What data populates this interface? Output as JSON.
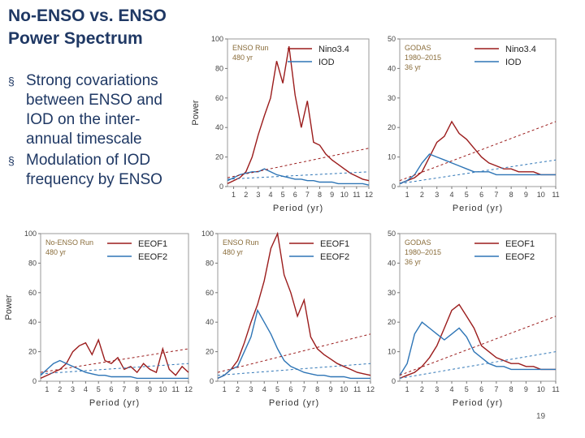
{
  "slide": {
    "title_lines": [
      "No-ENSO vs. ENSO",
      "Power Spectrum"
    ],
    "bullets": [
      {
        "lines": [
          "Strong covariations",
          "between ENSO and",
          "IOD on the inter-",
          "annual timescale"
        ]
      },
      {
        "lines": [
          "Modulation of IOD",
          "frequency by ENSO"
        ]
      }
    ],
    "bullet_glyph": "§",
    "page_number": "19"
  },
  "colors": {
    "title": "#1f3864",
    "red_series": "#9b1c1c",
    "blue_series": "#2e75b6"
  },
  "chart_data": [
    {
      "id": "enso-run-nino-iod",
      "type": "line",
      "annotation": [
        "ENSO Run",
        "480 yr"
      ],
      "xlabel": "Period (yr)",
      "ylabel": "Power",
      "xlim": [
        0.5,
        12
      ],
      "ylim": [
        0,
        100
      ],
      "x_ticks": [
        "1",
        "2",
        "3",
        "4",
        "5",
        "6",
        "7",
        "8",
        "9",
        "10",
        "11",
        "12"
      ],
      "y_ticks": [
        "0",
        "20",
        "40",
        "60",
        "80",
        "100"
      ],
      "legend_position": "top-right",
      "series": [
        {
          "name": "Nino3.4",
          "color": "#9b1c1c",
          "x": [
            0.5,
            1,
            1.5,
            2,
            2.5,
            3,
            3.5,
            4,
            4.5,
            5,
            5.5,
            6,
            6.5,
            7,
            7.5,
            8,
            8.5,
            9,
            9.5,
            10,
            10.5,
            11,
            11.5,
            12
          ],
          "y": [
            2,
            4,
            6,
            10,
            20,
            35,
            48,
            60,
            85,
            70,
            95,
            62,
            40,
            58,
            30,
            28,
            22,
            18,
            15,
            12,
            9,
            7,
            5,
            4
          ]
        },
        {
          "name": "IOD",
          "color": "#2e75b6",
          "x": [
            0.5,
            1,
            1.5,
            2,
            2.5,
            3,
            3.5,
            4,
            4.5,
            5,
            5.5,
            6,
            6.5,
            7,
            7.5,
            8,
            8.5,
            9,
            9.5,
            10,
            10.5,
            11,
            11.5,
            12
          ],
          "y": [
            4,
            6,
            8,
            9,
            10,
            10,
            12,
            10,
            8,
            7,
            6,
            5,
            5,
            4,
            4,
            3,
            3,
            3,
            2,
            2,
            2,
            2,
            2,
            1
          ]
        },
        {
          "name": "",
          "color": "#9b1c1c",
          "dashed": true,
          "x": [
            0.5,
            12
          ],
          "y": [
            6,
            26
          ]
        },
        {
          "name": "",
          "color": "#2e75b6",
          "dashed": true,
          "x": [
            0.5,
            12
          ],
          "y": [
            5,
            10
          ]
        }
      ]
    },
    {
      "id": "godas-nino-iod",
      "type": "line",
      "annotation": [
        "GODAS",
        "1980–2015",
        "36 yr"
      ],
      "xlabel": "Period (yr)",
      "ylabel": "",
      "xlim": [
        0.5,
        11
      ],
      "ylim": [
        0,
        50
      ],
      "x_ticks": [
        "1",
        "2",
        "3",
        "4",
        "5",
        "6",
        "7",
        "8",
        "9",
        "10",
        "11"
      ],
      "y_ticks": [
        "0",
        "10",
        "20",
        "30",
        "40",
        "50"
      ],
      "legend_position": "top-right",
      "series": [
        {
          "name": "Nino3.4",
          "color": "#9b1c1c",
          "x": [
            0.5,
            1,
            1.5,
            2,
            2.5,
            3,
            3.5,
            4,
            4.5,
            5,
            5.5,
            6,
            6.5,
            7,
            7.5,
            8,
            8.5,
            9,
            9.5,
            10,
            10.5,
            11
          ],
          "y": [
            1,
            2,
            3,
            5,
            10,
            15,
            17,
            22,
            18,
            16,
            13,
            10,
            8,
            7,
            6,
            6,
            5,
            5,
            5,
            4,
            4,
            4
          ]
        },
        {
          "name": "IOD",
          "color": "#2e75b6",
          "x": [
            0.5,
            1,
            1.5,
            2,
            2.5,
            3,
            3.5,
            4,
            4.5,
            5,
            5.5,
            6,
            6.5,
            7,
            7.5,
            8,
            8.5,
            9,
            9.5,
            10,
            10.5,
            11
          ],
          "y": [
            1,
            2,
            4,
            8,
            11,
            10,
            9,
            8,
            7,
            6,
            5,
            5,
            5,
            4,
            4,
            4,
            4,
            4,
            4,
            4,
            4,
            4
          ]
        },
        {
          "name": "",
          "color": "#9b1c1c",
          "dashed": true,
          "x": [
            0.5,
            11
          ],
          "y": [
            2,
            22
          ]
        },
        {
          "name": "",
          "color": "#2e75b6",
          "dashed": true,
          "x": [
            0.5,
            11
          ],
          "y": [
            1,
            9
          ]
        }
      ]
    },
    {
      "id": "no-enso-run-eeof",
      "type": "line",
      "annotation": [
        "No-ENSO Run",
        "480 yr"
      ],
      "xlabel": "Period (yr)",
      "ylabel": "Power",
      "xlim": [
        0.5,
        12
      ],
      "ylim": [
        0,
        100
      ],
      "x_ticks": [
        "1",
        "2",
        "3",
        "4",
        "5",
        "6",
        "7",
        "8",
        "9",
        "10",
        "11",
        "12"
      ],
      "y_ticks": [
        "0",
        "20",
        "40",
        "60",
        "80",
        "100"
      ],
      "legend_position": "top-right",
      "series": [
        {
          "name": "EEOF1",
          "color": "#9b1c1c",
          "x": [
            0.5,
            1,
            1.5,
            2,
            2.5,
            3,
            3.5,
            4,
            4.5,
            5,
            5.5,
            6,
            6.5,
            7,
            7.5,
            8,
            8.5,
            9,
            9.5,
            10,
            10.5,
            11,
            11.5,
            12
          ],
          "y": [
            2,
            4,
            6,
            8,
            12,
            20,
            24,
            26,
            18,
            28,
            14,
            12,
            16,
            8,
            10,
            6,
            12,
            8,
            6,
            22,
            8,
            4,
            10,
            6
          ]
        },
        {
          "name": "EEOF2",
          "color": "#2e75b6",
          "x": [
            0.5,
            1,
            1.5,
            2,
            2.5,
            3,
            3.5,
            4,
            4.5,
            5,
            5.5,
            6,
            6.5,
            7,
            7.5,
            8,
            8.5,
            9,
            9.5,
            10,
            10.5,
            11,
            11.5,
            12
          ],
          "y": [
            4,
            8,
            12,
            14,
            12,
            10,
            8,
            6,
            5,
            4,
            4,
            3,
            3,
            3,
            3,
            2,
            2,
            2,
            2,
            2,
            2,
            2,
            2,
            2
          ]
        },
        {
          "name": "",
          "color": "#9b1c1c",
          "dashed": true,
          "x": [
            0.5,
            12
          ],
          "y": [
            6,
            22
          ]
        },
        {
          "name": "",
          "color": "#2e75b6",
          "dashed": true,
          "x": [
            0.5,
            12
          ],
          "y": [
            5,
            12
          ]
        }
      ]
    },
    {
      "id": "enso-run-eeof",
      "type": "line",
      "annotation": [
        "ENSO Run",
        "480 yr"
      ],
      "xlabel": "Period (yr)",
      "ylabel": "",
      "xlim": [
        0.5,
        12
      ],
      "ylim": [
        0,
        100
      ],
      "x_ticks": [
        "1",
        "2",
        "3",
        "4",
        "5",
        "6",
        "7",
        "8",
        "9",
        "10",
        "11",
        "12"
      ],
      "y_ticks": [
        "0",
        "20",
        "40",
        "60",
        "80",
        "100"
      ],
      "legend_position": "top-right",
      "series": [
        {
          "name": "EEOF1",
          "color": "#9b1c1c",
          "x": [
            0.5,
            1,
            1.5,
            2,
            2.5,
            3,
            3.5,
            4,
            4.5,
            5,
            5.5,
            6,
            6.5,
            7,
            7.5,
            8,
            8.5,
            9,
            9.5,
            10,
            10.5,
            11,
            11.5,
            12
          ],
          "y": [
            2,
            4,
            8,
            14,
            26,
            40,
            52,
            68,
            90,
            100,
            72,
            60,
            44,
            55,
            30,
            22,
            18,
            15,
            12,
            10,
            8,
            6,
            5,
            4
          ]
        },
        {
          "name": "EEOF2",
          "color": "#2e75b6",
          "x": [
            0.5,
            1,
            1.5,
            2,
            2.5,
            3,
            3.5,
            4,
            4.5,
            5,
            5.5,
            6,
            6.5,
            7,
            7.5,
            8,
            8.5,
            9,
            9.5,
            10,
            10.5,
            11,
            11.5,
            12
          ],
          "y": [
            2,
            4,
            8,
            10,
            20,
            30,
            48,
            40,
            32,
            22,
            14,
            10,
            8,
            6,
            5,
            4,
            4,
            3,
            3,
            3,
            2,
            2,
            2,
            2
          ]
        },
        {
          "name": "",
          "color": "#9b1c1c",
          "dashed": true,
          "x": [
            0.5,
            12
          ],
          "y": [
            6,
            32
          ]
        },
        {
          "name": "",
          "color": "#2e75b6",
          "dashed": true,
          "x": [
            0.5,
            12
          ],
          "y": [
            4,
            12
          ]
        }
      ]
    },
    {
      "id": "godas-eeof",
      "type": "line",
      "annotation": [
        "GODAS",
        "1980–2015",
        "36 yr"
      ],
      "xlabel": "Period (yr)",
      "ylabel": "",
      "xlim": [
        0.5,
        11
      ],
      "ylim": [
        0,
        50
      ],
      "x_ticks": [
        "1",
        "2",
        "3",
        "4",
        "5",
        "6",
        "7",
        "8",
        "9",
        "10",
        "11"
      ],
      "y_ticks": [
        "0",
        "10",
        "20",
        "30",
        "40",
        "50"
      ],
      "legend_position": "top-right",
      "series": [
        {
          "name": "EEOF1",
          "color": "#9b1c1c",
          "x": [
            0.5,
            1,
            1.5,
            2,
            2.5,
            3,
            3.5,
            4,
            4.5,
            5,
            5.5,
            6,
            6.5,
            7,
            7.5,
            8,
            8.5,
            9,
            9.5,
            10,
            10.5,
            11
          ],
          "y": [
            1,
            2,
            3,
            5,
            8,
            12,
            18,
            24,
            26,
            22,
            18,
            12,
            10,
            8,
            7,
            6,
            6,
            5,
            5,
            4,
            4,
            4
          ]
        },
        {
          "name": "EEOF2",
          "color": "#2e75b6",
          "x": [
            0.5,
            1,
            1.5,
            2,
            2.5,
            3,
            3.5,
            4,
            4.5,
            5,
            5.5,
            6,
            6.5,
            7,
            7.5,
            8,
            8.5,
            9,
            9.5,
            10,
            10.5,
            11
          ],
          "y": [
            2,
            6,
            16,
            20,
            18,
            16,
            14,
            16,
            18,
            15,
            10,
            8,
            6,
            5,
            5,
            4,
            4,
            4,
            4,
            4,
            4,
            4
          ]
        },
        {
          "name": "",
          "color": "#9b1c1c",
          "dashed": true,
          "x": [
            0.5,
            11
          ],
          "y": [
            2,
            22
          ]
        },
        {
          "name": "",
          "color": "#2e75b6",
          "dashed": true,
          "x": [
            0.5,
            11
          ],
          "y": [
            1,
            10
          ]
        }
      ]
    }
  ]
}
